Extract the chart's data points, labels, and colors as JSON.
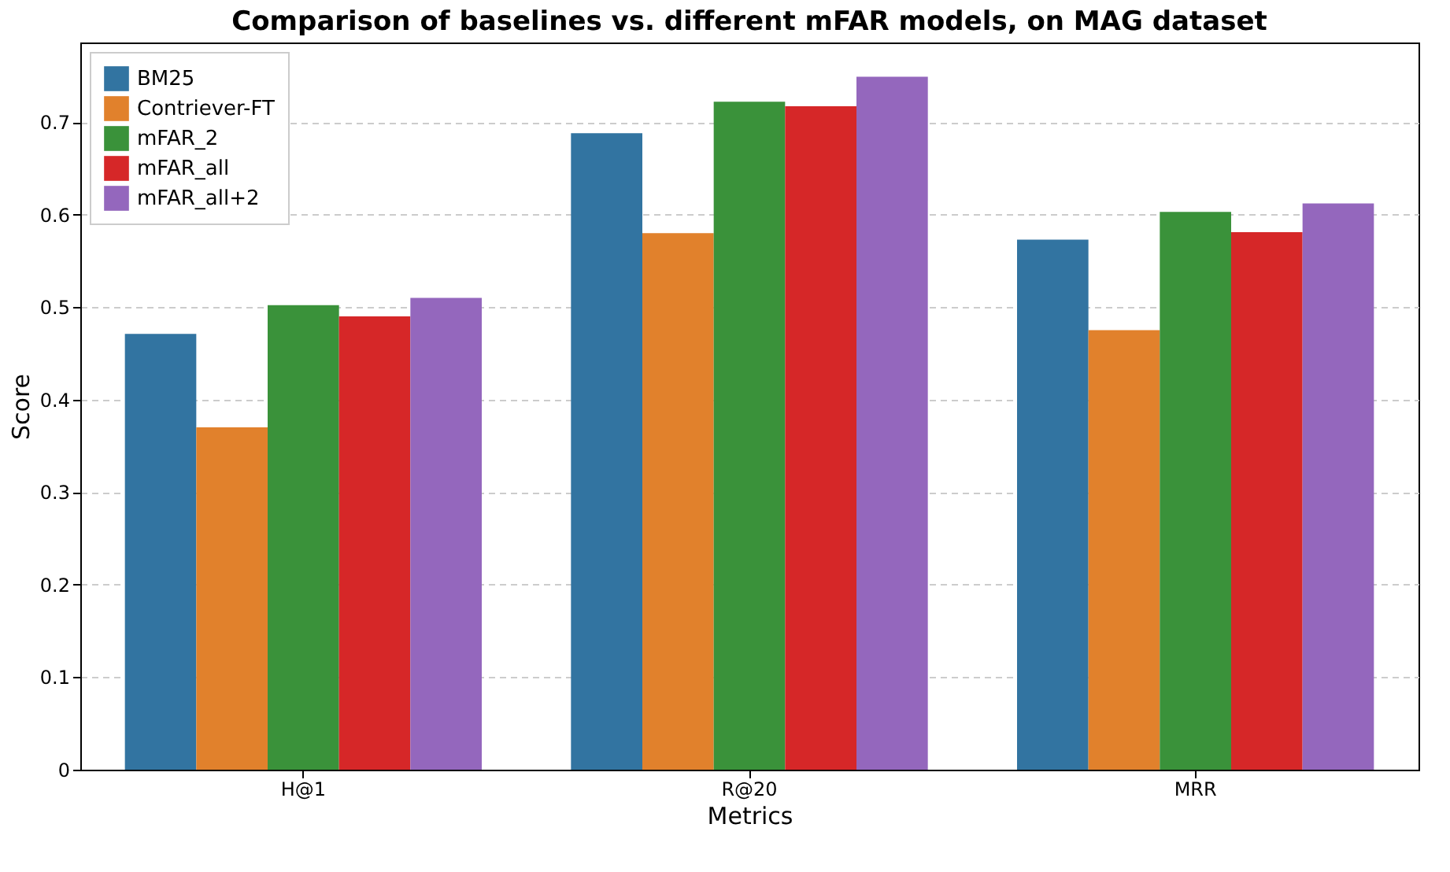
{
  "chart_data": {
    "type": "bar",
    "title": "Comparison of baselines vs. different mFAR models, on MAG dataset",
    "xlabel": "Metrics",
    "ylabel": "Score",
    "categories": [
      "H@1",
      "R@20",
      "MRR"
    ],
    "series": [
      {
        "name": "BM25",
        "color": "#3274a1",
        "values": [
          0.471,
          0.688,
          0.573
        ]
      },
      {
        "name": "Contriever-FT",
        "color": "#e1812c",
        "values": [
          0.37,
          0.58,
          0.475
        ]
      },
      {
        "name": "mFAR_2",
        "color": "#3a923a",
        "values": [
          0.502,
          0.722,
          0.603
        ]
      },
      {
        "name": "mFAR_all",
        "color": "#d62728",
        "values": [
          0.49,
          0.717,
          0.581
        ]
      },
      {
        "name": "mFAR_all+2",
        "color": "#9467bd",
        "values": [
          0.51,
          0.749,
          0.612
        ]
      }
    ],
    "ylim": [
      0,
      0.786
    ],
    "yticks": [
      0,
      0.1,
      0.2,
      0.3,
      0.4,
      0.5,
      0.6,
      0.7
    ],
    "grid": "y",
    "legend": "top left"
  }
}
